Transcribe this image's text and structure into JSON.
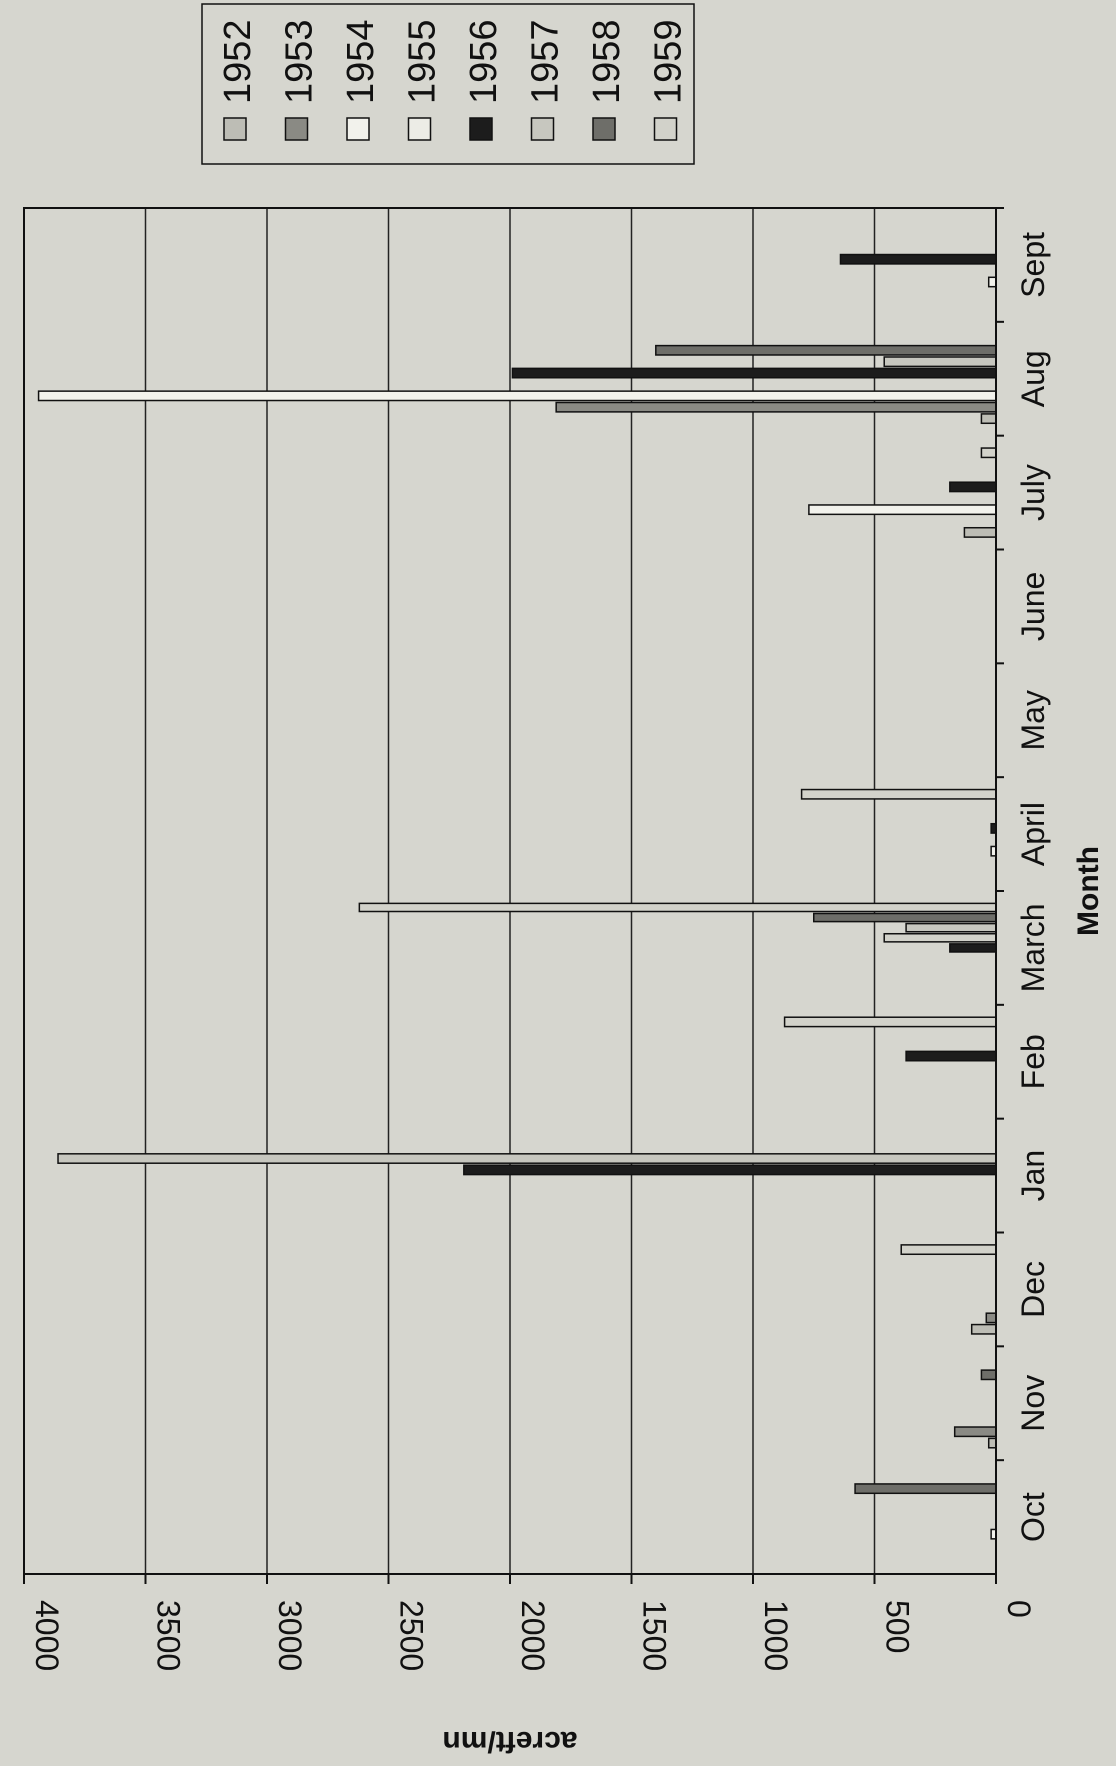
{
  "chart_data": {
    "type": "bar",
    "orientation": "rotated-90-clockwise",
    "xlabel": "Month",
    "ylabel": "acreft/mn",
    "ylim": [
      0,
      4000
    ],
    "yticks": [
      "0",
      "500",
      "1000",
      "1500",
      "2000",
      "2500",
      "3000",
      "3500",
      "4000"
    ],
    "grid": true,
    "legend_position": "top-right",
    "categories": [
      "Oct",
      "Nov",
      "Dec",
      "Jan",
      "Feb",
      "March",
      "April",
      "May",
      "June",
      "July",
      "Aug",
      "Sept"
    ],
    "series": [
      {
        "name": "1952",
        "color": "#bdbdb5",
        "values": [
          0,
          30,
          100,
          0,
          0,
          0,
          0,
          0,
          0,
          130,
          60,
          0
        ]
      },
      {
        "name": "1953",
        "color": "#8a8a84",
        "values": [
          0,
          170,
          40,
          0,
          0,
          0,
          0,
          0,
          0,
          0,
          1810,
          0
        ]
      },
      {
        "name": "1954",
        "color": "#f2f2ec",
        "values": [
          20,
          0,
          0,
          0,
          0,
          0,
          20,
          0,
          0,
          770,
          3940,
          30
        ]
      },
      {
        "name": "1955",
        "color": "#ecece6",
        "values": [
          0,
          0,
          0,
          0,
          0,
          0,
          0,
          0,
          0,
          0,
          0,
          0
        ]
      },
      {
        "name": "1956",
        "color": "#1c1c1c",
        "values": [
          0,
          0,
          0,
          2190,
          370,
          190,
          20,
          0,
          0,
          190,
          1990,
          640
        ]
      },
      {
        "name": "1957",
        "color": "#c7c7bf",
        "values": [
          0,
          0,
          0,
          3860,
          0,
          370,
          0,
          0,
          0,
          0,
          460,
          0
        ]
      },
      {
        "name": "1958",
        "color": "#6e6e69",
        "values": [
          580,
          60,
          0,
          0,
          0,
          750,
          0,
          0,
          0,
          0,
          1400,
          0
        ]
      },
      {
        "name": "1959",
        "color": "#d2d2ca",
        "values": [
          0,
          0,
          390,
          0,
          870,
          2620,
          800,
          0,
          0,
          60,
          0,
          0
        ]
      }
    ],
    "extra_bars": [
      {
        "category": "March",
        "after_series": "1956",
        "value": 460,
        "color": "#d2d2ca"
      }
    ]
  }
}
